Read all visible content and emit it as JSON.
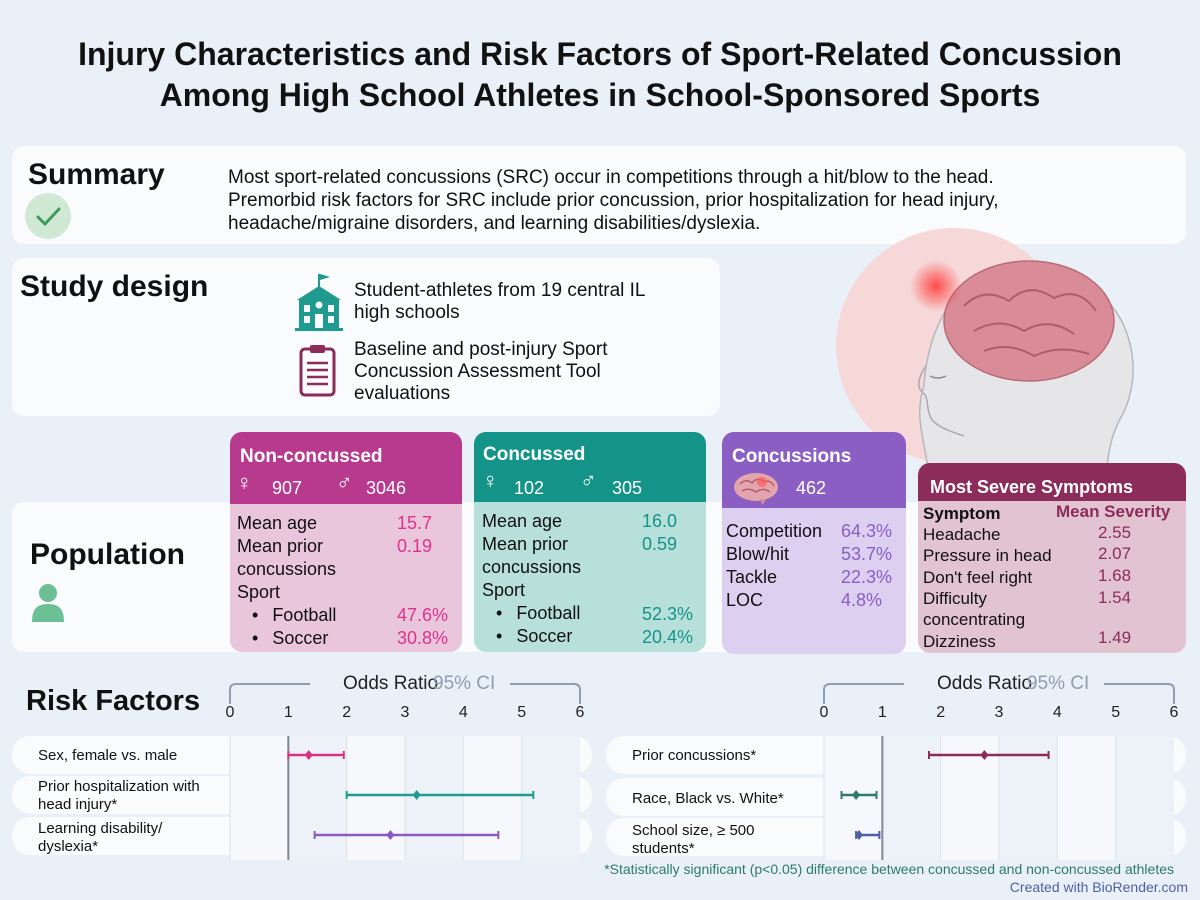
{
  "title_line1": "Injury Characteristics and Risk Factors of Sport-Related Concussion",
  "title_line2": "Among High School Athletes in School-Sponsored Sports",
  "summary": {
    "heading": "Summary",
    "line1": "Most sport-related concussions (SRC) occur in competitions through a hit/blow to the head.",
    "line2": "Premorbid risk factors for SRC include prior concussion, prior hospitalization for head injury,",
    "line3": "headache/migraine disorders, and learning disabilities/dyslexia.",
    "icon": "checkmark-icon"
  },
  "study_design": {
    "heading": "Study design",
    "item1_line1": "Student-athletes from 19 central IL",
    "item1_line2": "high schools",
    "item2_line1": "Baseline and post-injury Sport",
    "item2_line2": "Concussion Assessment Tool",
    "item2_line3": "evaluations"
  },
  "population": {
    "heading": "Population",
    "non_concussed": {
      "title": "Non-concussed",
      "female": "907",
      "male": "3046",
      "mean_age_label": "Mean age",
      "mean_age": "15.7",
      "prior_label1": "Mean prior",
      "prior_label2": "concussions",
      "prior": "0.19",
      "sport_label": "Sport",
      "football_label": "Football",
      "football": "47.6%",
      "soccer_label": "Soccer",
      "soccer": "30.8%",
      "color": "#b83a8e"
    },
    "concussed": {
      "title": "Concussed",
      "female": "102",
      "male": "305",
      "mean_age_label": "Mean age",
      "mean_age": "16.0",
      "prior_label1": "Mean prior",
      "prior_label2": "concussions",
      "prior": "0.59",
      "sport_label": "Sport",
      "football_label": "Football",
      "football": "52.3%",
      "soccer_label": "Soccer",
      "soccer": "20.4%",
      "color": "#149488"
    },
    "concussions": {
      "title": "Concussions",
      "count": "462",
      "rows": [
        {
          "label": "Competition",
          "value": "64.3%"
        },
        {
          "label": "Blow/hit",
          "value": "53.7%"
        },
        {
          "label": "Tackle",
          "value": "22.3%"
        },
        {
          "label": "LOC",
          "value": "4.8%"
        }
      ],
      "color": "#8b5ec4"
    },
    "symptoms": {
      "title": "Most Severe Symptoms",
      "col_symptom": "Symptom",
      "col_severity": "Mean Severity",
      "rows": [
        {
          "label": "Headache",
          "value": "2.55"
        },
        {
          "label": "Pressure in head",
          "value": "2.07"
        },
        {
          "label": "Don't feel right",
          "value": "1.68"
        },
        {
          "label": "Difficulty concentrating",
          "value": "1.54"
        },
        {
          "label": "Dizziness",
          "value": "1.49"
        }
      ],
      "color": "#8c2c5a"
    }
  },
  "risk_factors": {
    "heading": "Risk Factors",
    "axis_title": "Odds Ratio",
    "ci_label": "95% CI",
    "footnote": "*Statistically significant (p<0.05) difference between concussed and non-concussed athletes",
    "credit": "Created with BioRender.com"
  },
  "chart_data": [
    {
      "type": "forest",
      "xlabel": "Odds Ratio",
      "xlim": [
        0,
        6
      ],
      "xticks": [
        0,
        1,
        2,
        3,
        4,
        5,
        6
      ],
      "reference_line": 1,
      "rows": [
        {
          "label_lines": [
            "Sex, female vs. male"
          ],
          "or": 1.35,
          "lo": 1.0,
          "hi": 1.95,
          "color": "#d63384"
        },
        {
          "label_lines": [
            "Prior hospitalization with",
            "head injury*"
          ],
          "or": 3.2,
          "lo": 2.0,
          "hi": 5.2,
          "color": "#1f9a8e"
        },
        {
          "label_lines": [
            "Learning disability/",
            "dyslexia*"
          ],
          "or": 2.75,
          "lo": 1.45,
          "hi": 4.6,
          "color": "#8d58c2"
        }
      ]
    },
    {
      "type": "forest",
      "xlabel": "Odds Ratio",
      "xlim": [
        0,
        6
      ],
      "xticks": [
        0,
        1,
        2,
        3,
        4,
        5,
        6
      ],
      "reference_line": 1,
      "rows": [
        {
          "label_lines": [
            "Prior concussions*"
          ],
          "or": 2.75,
          "lo": 1.8,
          "hi": 3.85,
          "color": "#8c2c5a"
        },
        {
          "label_lines": [
            "Race, Black vs. White*"
          ],
          "or": 0.55,
          "lo": 0.3,
          "hi": 0.9,
          "color": "#2d7a6e"
        },
        {
          "label_lines": [
            "School size, ≥ 500",
            "students*"
          ],
          "or": 0.6,
          "lo": 0.55,
          "hi": 0.95,
          "color": "#4f5fa6"
        }
      ]
    }
  ]
}
